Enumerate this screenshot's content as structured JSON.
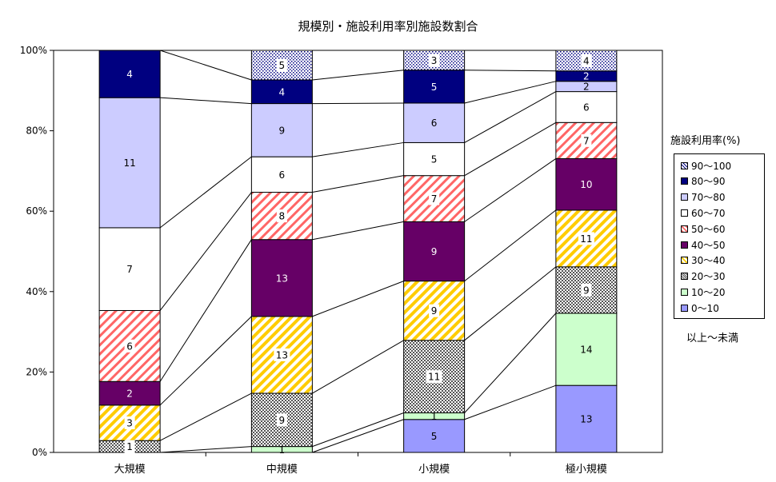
{
  "chart_data": {
    "type": "bar",
    "stacked": true,
    "normalized": true,
    "title": "規模別・施設利用率別施設数割合",
    "categories": [
      "大規模",
      "中規模",
      "小規模",
      "極小規模"
    ],
    "ylim": [
      0,
      100
    ],
    "yticks": [
      "0%",
      "20%",
      "40%",
      "60%",
      "80%",
      "100%"
    ],
    "legend_title": "施設利用率(%)",
    "legend_note": "以上～未満",
    "legend_position": "right",
    "series": [
      {
        "name": "0～10",
        "values": [
          0,
          0,
          5,
          13
        ],
        "color": "#9999ff",
        "pattern": "solid"
      },
      {
        "name": "10～20",
        "values": [
          0,
          1,
          1,
          14
        ],
        "color": "#ccffcc",
        "pattern": "solid"
      },
      {
        "name": "20～30",
        "values": [
          1,
          9,
          11,
          9
        ],
        "color": "#808080",
        "pattern": "dots-gray"
      },
      {
        "name": "30～40",
        "values": [
          3,
          13,
          9,
          11
        ],
        "color": "#ffcc00",
        "pattern": "diag-yellow"
      },
      {
        "name": "40～50",
        "values": [
          2,
          13,
          9,
          10
        ],
        "color": "#660066",
        "pattern": "solid"
      },
      {
        "name": "50～60",
        "values": [
          6,
          8,
          7,
          7
        ],
        "color": "#ff6666",
        "pattern": "diag-red"
      },
      {
        "name": "60～70",
        "values": [
          7,
          6,
          5,
          6
        ],
        "color": "#ffffff",
        "pattern": "solid"
      },
      {
        "name": "70～80",
        "values": [
          11,
          9,
          6,
          2
        ],
        "color": "#ccccff",
        "pattern": "solid"
      },
      {
        "name": "80～90",
        "values": [
          4,
          4,
          5,
          2
        ],
        "color": "#000080",
        "pattern": "solid"
      },
      {
        "name": "90～100",
        "values": [
          0,
          5,
          3,
          4
        ],
        "color": "#000080",
        "pattern": "dots-blue"
      }
    ]
  }
}
